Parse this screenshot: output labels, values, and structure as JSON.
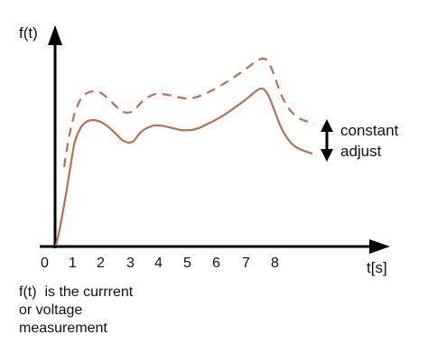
{
  "diagram": {
    "y_axis_label": "f(t)",
    "x_axis_label": "t[s]",
    "origin_label": "0",
    "tick_labels": [
      "1",
      "2",
      "3",
      "4",
      "5",
      "6",
      "7",
      "8"
    ],
    "annotation_line1": "constant",
    "annotation_line2": "adjust",
    "note_lines": [
      "f(t)  is the currrent",
      "or voltage",
      "measurement"
    ],
    "curve_color": "#b9704f",
    "axis_color": "#000000"
  }
}
